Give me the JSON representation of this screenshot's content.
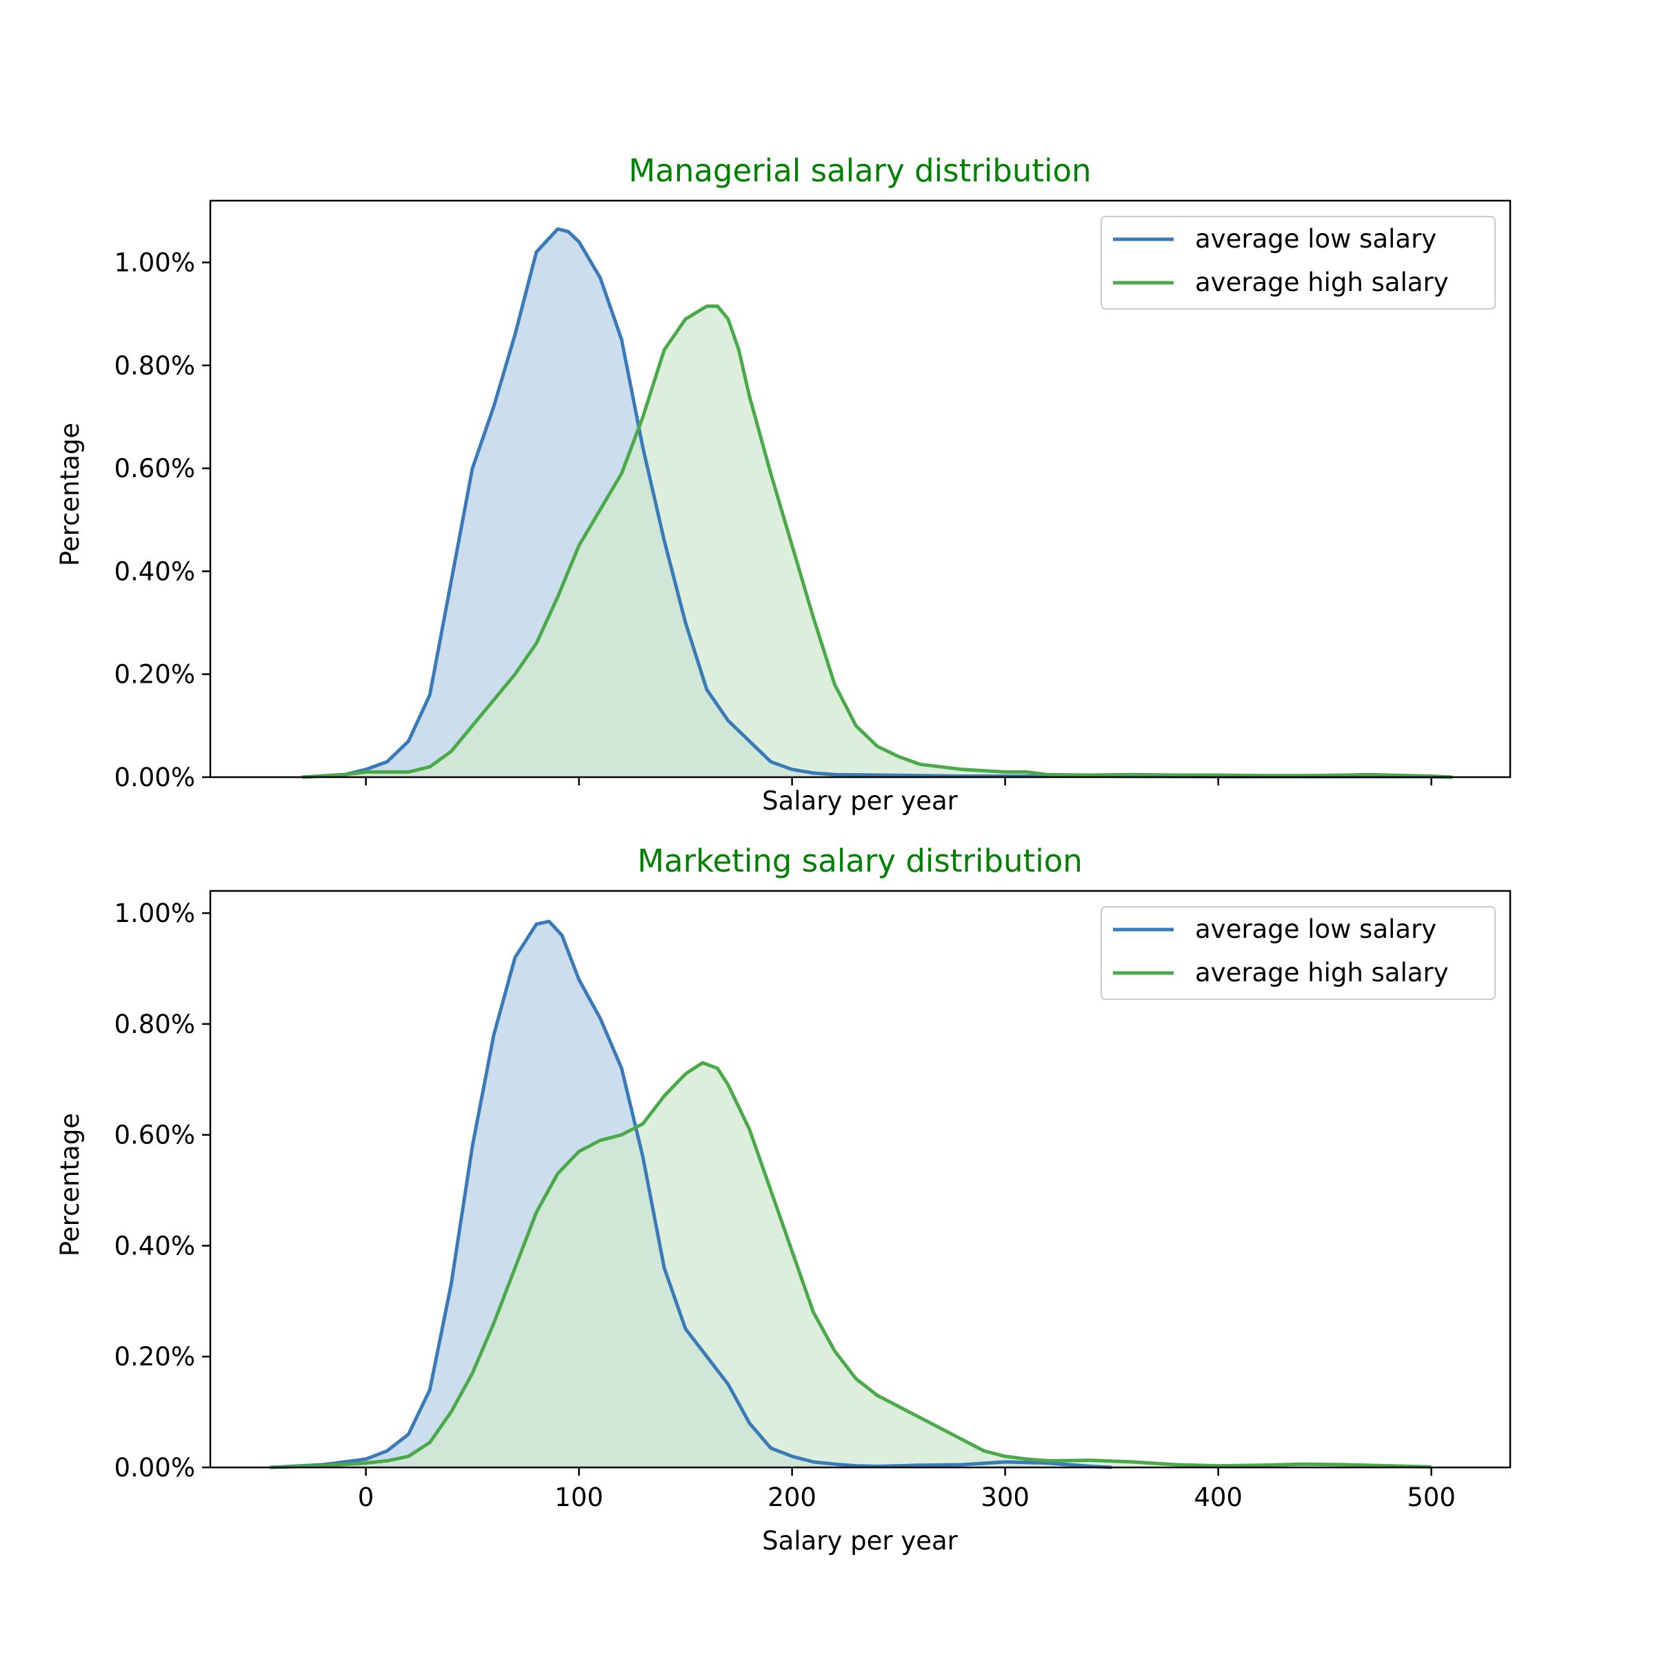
{
  "chart_data": [
    {
      "type": "area",
      "title": "Managerial salary distribution",
      "title_color": "#008000",
      "xlabel": "Salary per year",
      "ylabel": "Percentage",
      "xlim": [
        -73,
        537
      ],
      "ylim": [
        0,
        1.12
      ],
      "xticks": [
        0,
        100,
        200,
        300,
        400,
        500
      ],
      "xtick_labels_shown": false,
      "yticks": [
        0,
        0.2,
        0.4,
        0.6,
        0.8,
        1.0
      ],
      "ytick_labels": [
        "0.00%",
        "0.20%",
        "0.40%",
        "0.60%",
        "0.80%",
        "1.00%"
      ],
      "grid": false,
      "legend_position": "upper right",
      "series": [
        {
          "name": "average low salary",
          "color": "#3a7ab8",
          "fill": "#ccdded",
          "x": [
            -30,
            -10,
            0,
            10,
            20,
            30,
            40,
            50,
            60,
            70,
            80,
            90,
            95,
            100,
            110,
            120,
            130,
            140,
            150,
            160,
            170,
            180,
            190,
            200,
            210,
            220,
            240,
            260,
            280,
            300,
            350,
            400,
            450,
            500,
            510
          ],
          "y": [
            0.0,
            0.005,
            0.015,
            0.03,
            0.07,
            0.16,
            0.38,
            0.6,
            0.72,
            0.86,
            1.02,
            1.065,
            1.06,
            1.04,
            0.97,
            0.85,
            0.64,
            0.46,
            0.3,
            0.17,
            0.11,
            0.07,
            0.03,
            0.015,
            0.008,
            0.005,
            0.004,
            0.003,
            0.002,
            0.002,
            0.002,
            0.001,
            0.001,
            0.001,
            0.0
          ]
        },
        {
          "name": "average high salary",
          "color": "#4aaa4a",
          "fill": "#d1e9d0",
          "x": [
            -30,
            -10,
            0,
            10,
            20,
            30,
            40,
            50,
            60,
            70,
            80,
            90,
            100,
            110,
            120,
            130,
            140,
            150,
            160,
            165,
            170,
            175,
            180,
            190,
            200,
            210,
            220,
            230,
            240,
            250,
            260,
            280,
            300,
            310,
            320,
            340,
            360,
            380,
            400,
            420,
            440,
            460,
            470,
            480,
            500,
            510
          ],
          "y": [
            0.0,
            0.005,
            0.01,
            0.01,
            0.01,
            0.02,
            0.05,
            0.1,
            0.15,
            0.2,
            0.26,
            0.35,
            0.45,
            0.52,
            0.59,
            0.7,
            0.83,
            0.89,
            0.915,
            0.915,
            0.89,
            0.83,
            0.74,
            0.59,
            0.45,
            0.31,
            0.18,
            0.1,
            0.06,
            0.04,
            0.025,
            0.015,
            0.01,
            0.01,
            0.005,
            0.004,
            0.005,
            0.004,
            0.004,
            0.003,
            0.003,
            0.004,
            0.005,
            0.004,
            0.002,
            0.0
          ]
        }
      ]
    },
    {
      "type": "area",
      "title": "Marketing salary distribution",
      "title_color": "#008000",
      "xlabel": "Salary per year",
      "ylabel": "Percentage",
      "xlim": [
        -73,
        537
      ],
      "ylim": [
        0,
        1.04
      ],
      "xticks": [
        0,
        100,
        200,
        300,
        400,
        500
      ],
      "xtick_labels": [
        "0",
        "100",
        "200",
        "300",
        "400",
        "500"
      ],
      "xtick_labels_shown": true,
      "yticks": [
        0,
        0.2,
        0.4,
        0.6,
        0.8,
        1.0
      ],
      "ytick_labels": [
        "0.00%",
        "0.20%",
        "0.40%",
        "0.60%",
        "0.80%",
        "1.00%"
      ],
      "grid": false,
      "legend_position": "upper right",
      "series": [
        {
          "name": "average low salary",
          "color": "#3a7ab8",
          "fill": "#ccdded",
          "x": [
            -45,
            -20,
            0,
            10,
            20,
            30,
            40,
            50,
            60,
            70,
            80,
            86,
            92,
            100,
            110,
            120,
            130,
            140,
            150,
            160,
            170,
            180,
            190,
            200,
            210,
            220,
            230,
            240,
            250,
            260,
            280,
            300,
            320,
            340,
            350
          ],
          "y": [
            0.0,
            0.005,
            0.015,
            0.03,
            0.06,
            0.14,
            0.33,
            0.58,
            0.78,
            0.92,
            0.98,
            0.985,
            0.96,
            0.88,
            0.81,
            0.72,
            0.56,
            0.36,
            0.25,
            0.2,
            0.15,
            0.08,
            0.035,
            0.02,
            0.01,
            0.006,
            0.003,
            0.002,
            0.003,
            0.004,
            0.005,
            0.01,
            0.008,
            0.002,
            0.0
          ]
        },
        {
          "name": "average high salary",
          "color": "#4aaa4a",
          "fill": "#d1e9d0",
          "x": [
            -45,
            -20,
            0,
            10,
            20,
            30,
            40,
            50,
            60,
            70,
            80,
            90,
            100,
            110,
            120,
            130,
            140,
            150,
            158,
            165,
            170,
            180,
            190,
            200,
            210,
            220,
            230,
            240,
            250,
            260,
            270,
            280,
            290,
            300,
            310,
            320,
            340,
            360,
            380,
            400,
            420,
            440,
            460,
            480,
            500
          ],
          "y": [
            0.0,
            0.003,
            0.008,
            0.012,
            0.02,
            0.045,
            0.1,
            0.17,
            0.26,
            0.36,
            0.46,
            0.53,
            0.57,
            0.59,
            0.6,
            0.62,
            0.67,
            0.71,
            0.73,
            0.72,
            0.69,
            0.61,
            0.5,
            0.39,
            0.28,
            0.21,
            0.16,
            0.13,
            0.11,
            0.09,
            0.07,
            0.05,
            0.03,
            0.02,
            0.015,
            0.012,
            0.013,
            0.01,
            0.005,
            0.003,
            0.004,
            0.006,
            0.005,
            0.003,
            0.001
          ]
        }
      ]
    }
  ]
}
